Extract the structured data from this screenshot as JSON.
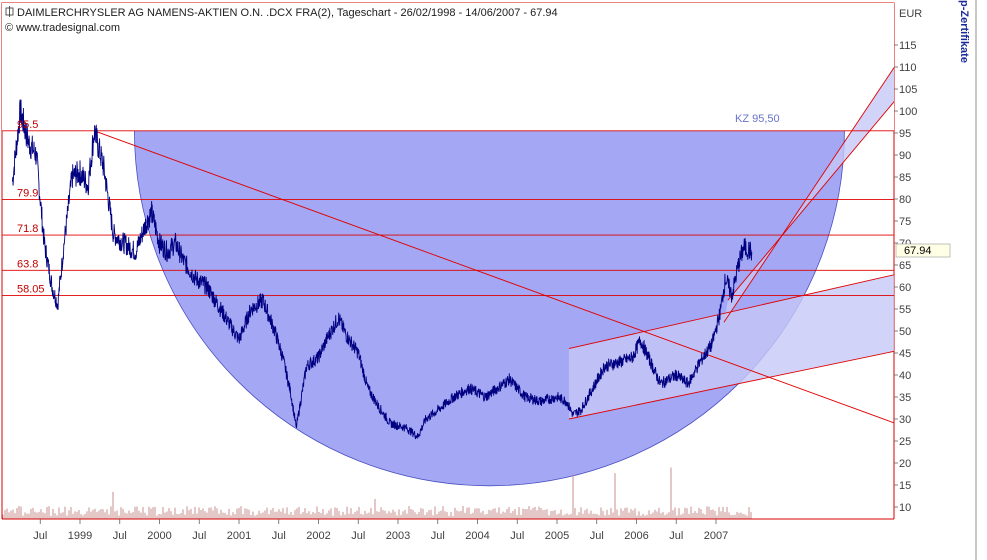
{
  "header": {
    "title": "DAIMLERCHRYSLER AG NAMENS-AKTIEN O.N. .DCX FRA(2), Tageschart - 26/02/1998 - 14/06/2007 - 67.94",
    "copyright": "© www.tradesignal.com"
  },
  "side_label": "p-Zertifikate",
  "colors": {
    "price_line": "#000080",
    "circle_fill": "#7f85f0",
    "channel_fill": "#c6c8f6",
    "red_line": "#e00000",
    "frame": "#d40000",
    "volume": "#c89090"
  },
  "chart_data": {
    "type": "line",
    "title": "DAIMLERCHRYSLER AG NAMENS-AKTIEN O.N. .DCX FRA(2), Tageschart - 26/02/1998 - 14/06/2007 - 67.94",
    "ylabel": "EUR",
    "ylim": [
      5,
      120
    ],
    "y_ticks": [
      10,
      15,
      20,
      25,
      30,
      35,
      40,
      45,
      50,
      55,
      60,
      65,
      70,
      75,
      80,
      85,
      90,
      95,
      100,
      105,
      110,
      115
    ],
    "x_tick_labels": [
      "Jul",
      "1999",
      "Jul",
      "2000",
      "Jul",
      "2001",
      "Jul",
      "2002",
      "Jul",
      "2003",
      "Jul",
      "2004",
      "Jul",
      "2005",
      "Jul",
      "2006",
      "Jul",
      "2007"
    ],
    "last_value_label": "67.94",
    "horizontal_levels": [
      {
        "label": "95.5",
        "value": 95.5
      },
      {
        "label": "79.9",
        "value": 79.9
      },
      {
        "label": "71.8",
        "value": 71.8
      },
      {
        "label": "63.8",
        "value": 63.8
      },
      {
        "label": "58.05",
        "value": 58.05
      }
    ],
    "annotation": "KZ 95,50",
    "series": [
      {
        "values_by_year": [
          {
            "t": 1998.15,
            "v": 84
          },
          {
            "t": 1998.25,
            "v": 100
          },
          {
            "t": 1998.35,
            "v": 93
          },
          {
            "t": 1998.45,
            "v": 90
          },
          {
            "t": 1998.55,
            "v": 70
          },
          {
            "t": 1998.65,
            "v": 60
          },
          {
            "t": 1998.72,
            "v": 56
          },
          {
            "t": 1998.8,
            "v": 70
          },
          {
            "t": 1998.9,
            "v": 85
          },
          {
            "t": 1999.0,
            "v": 86
          },
          {
            "t": 1999.1,
            "v": 83
          },
          {
            "t": 1999.18,
            "v": 95.5
          },
          {
            "t": 1999.3,
            "v": 87
          },
          {
            "t": 1999.42,
            "v": 72
          },
          {
            "t": 1999.55,
            "v": 70
          },
          {
            "t": 1999.7,
            "v": 68
          },
          {
            "t": 1999.82,
            "v": 74
          },
          {
            "t": 1999.9,
            "v": 77
          },
          {
            "t": 2000.0,
            "v": 70
          },
          {
            "t": 2000.1,
            "v": 68
          },
          {
            "t": 2000.2,
            "v": 70
          },
          {
            "t": 2000.3,
            "v": 66
          },
          {
            "t": 2000.45,
            "v": 62
          },
          {
            "t": 2000.6,
            "v": 60
          },
          {
            "t": 2000.8,
            "v": 54
          },
          {
            "t": 2001.0,
            "v": 48
          },
          {
            "t": 2001.15,
            "v": 55
          },
          {
            "t": 2001.3,
            "v": 57
          },
          {
            "t": 2001.45,
            "v": 50
          },
          {
            "t": 2001.55,
            "v": 44
          },
          {
            "t": 2001.65,
            "v": 36
          },
          {
            "t": 2001.72,
            "v": 28
          },
          {
            "t": 2001.85,
            "v": 42
          },
          {
            "t": 2002.0,
            "v": 44
          },
          {
            "t": 2002.1,
            "v": 48
          },
          {
            "t": 2002.25,
            "v": 53
          },
          {
            "t": 2002.35,
            "v": 49
          },
          {
            "t": 2002.5,
            "v": 45
          },
          {
            "t": 2002.62,
            "v": 37
          },
          {
            "t": 2002.75,
            "v": 33
          },
          {
            "t": 2002.9,
            "v": 29
          },
          {
            "t": 2003.1,
            "v": 28
          },
          {
            "t": 2003.25,
            "v": 26
          },
          {
            "t": 2003.35,
            "v": 30
          },
          {
            "t": 2003.5,
            "v": 32
          },
          {
            "t": 2003.7,
            "v": 35
          },
          {
            "t": 2003.9,
            "v": 37
          },
          {
            "t": 2004.1,
            "v": 35
          },
          {
            "t": 2004.25,
            "v": 37
          },
          {
            "t": 2004.4,
            "v": 39
          },
          {
            "t": 2004.6,
            "v": 35
          },
          {
            "t": 2004.8,
            "v": 34
          },
          {
            "t": 2005.0,
            "v": 35
          },
          {
            "t": 2005.12,
            "v": 34
          },
          {
            "t": 2005.2,
            "v": 31
          },
          {
            "t": 2005.3,
            "v": 32
          },
          {
            "t": 2005.45,
            "v": 37
          },
          {
            "t": 2005.6,
            "v": 42
          },
          {
            "t": 2005.8,
            "v": 43
          },
          {
            "t": 2005.95,
            "v": 44
          },
          {
            "t": 2006.05,
            "v": 48
          },
          {
            "t": 2006.15,
            "v": 44
          },
          {
            "t": 2006.3,
            "v": 38
          },
          {
            "t": 2006.5,
            "v": 40
          },
          {
            "t": 2006.65,
            "v": 38
          },
          {
            "t": 2006.8,
            "v": 43
          },
          {
            "t": 2006.95,
            "v": 47
          },
          {
            "t": 2007.05,
            "v": 54
          },
          {
            "t": 2007.12,
            "v": 62
          },
          {
            "t": 2007.2,
            "v": 58
          },
          {
            "t": 2007.28,
            "v": 65
          },
          {
            "t": 2007.35,
            "v": 69
          },
          {
            "t": 2007.45,
            "v": 67.94
          }
        ]
      }
    ]
  }
}
